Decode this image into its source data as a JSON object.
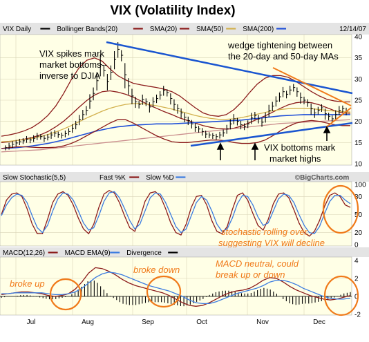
{
  "title": "VIX  (Volatility Index)",
  "colors": {
    "panel_bg": "#FFFFE6",
    "header_bg": "#E4E4E4",
    "price": "#000000",
    "bollinger": "#8B1A1A",
    "sma20": "#8B1A1A",
    "sma50": "#D2B04C",
    "sma200": "#1F4FD8",
    "annotation_line_blue": "#1A55D0",
    "annotation_orange": "#F07A1A",
    "fast_k": "#8B1A1A",
    "slow_d": "#3A7BE0",
    "macd": "#8B1A1A",
    "macd_ema": "#3A7BE0",
    "divergence": "#000000"
  },
  "chart_data": [
    {
      "type": "line",
      "panel": "price",
      "legend": {
        "items": [
          "VIX Daily",
          "Bollinger Bands(20)",
          "SMA(20)",
          "SMA(50)",
          "SMA(200)"
        ],
        "date": "12/14/07"
      },
      "ylim": [
        10,
        40
      ],
      "yticks": [
        "10",
        "15",
        "20",
        "25",
        "30",
        "35",
        "40"
      ],
      "xticks": [
        "Jul",
        "Aug",
        "Sep",
        "Oct",
        "Nov",
        "Dec"
      ],
      "watermark": "©BigCharts.com",
      "series": [
        {
          "name": "VIX Daily",
          "style": "ohlc",
          "values": [
            13.8,
            14.2,
            14.6,
            14.9,
            15.2,
            15.4,
            15.8,
            15.6,
            16.0,
            16.5,
            16.4,
            16.0,
            16.3,
            16.8,
            17.2,
            16.9,
            16.7,
            17.1,
            17.6,
            18.4,
            19.2,
            20.4,
            21.6,
            22.6,
            24.8,
            26.6,
            29.6,
            33.4,
            32.0,
            29.4,
            31.6,
            34.6,
            37.0,
            35.6,
            31.0,
            28.4,
            26.0,
            24.6,
            24.0,
            25.2,
            24.6,
            23.4,
            24.6,
            25.4,
            26.2,
            27.3,
            26.8,
            25.4,
            24.0,
            23.0,
            22.0,
            21.0,
            20.2,
            19.4,
            18.6,
            18.2,
            17.6,
            17.0,
            16.8,
            16.6,
            16.4,
            16.8,
            17.3,
            18.2,
            19.4,
            20.6,
            20.0,
            19.2,
            18.8,
            19.4,
            20.8,
            21.4,
            20.6,
            19.8,
            21.0,
            22.6,
            23.6,
            24.8,
            25.8,
            27.0,
            26.4,
            27.4,
            28.0,
            27.0,
            25.6,
            25.0,
            24.4,
            23.0,
            22.0,
            22.6,
            23.2,
            21.8,
            21.2,
            20.6,
            21.6,
            22.6,
            23.0,
            22.4
          ]
        },
        {
          "name": "SMA(20)",
          "values": [
            15.0,
            15.2,
            15.5,
            15.8,
            16.2,
            16.8,
            17.6,
            18.7,
            20.0,
            21.6,
            23.3,
            24.9,
            26.2,
            27.0,
            27.2,
            26.9,
            26.4,
            25.7,
            24.8,
            23.9,
            23.1,
            22.3,
            21.6,
            20.8,
            20.2,
            19.6,
            19.0,
            18.6,
            18.3,
            18.2,
            18.4,
            18.9,
            19.7,
            20.5,
            21.3,
            22.2,
            23.1,
            23.9,
            24.4,
            24.6,
            24.4,
            23.9,
            23.2,
            22.5,
            22.0,
            21.9
          ]
        },
        {
          "name": "SMA(50)",
          "values": [
            15.2,
            15.3,
            15.5,
            15.7,
            16.0,
            16.4,
            16.9,
            17.5,
            18.2,
            19.0,
            19.9,
            20.8,
            21.6,
            22.4,
            23.1,
            23.6,
            24.0,
            24.2,
            24.2,
            24.0,
            23.7,
            23.3,
            22.9,
            22.4,
            21.9,
            21.4,
            21.0,
            20.7,
            20.5,
            20.5,
            20.6,
            20.9,
            21.3,
            21.7,
            22.1,
            22.5,
            22.8,
            23.0,
            23.1,
            23.1,
            23.0,
            22.8,
            22.6,
            22.4,
            22.3,
            22.2
          ]
        },
        {
          "name": "SMA(200)",
          "values": [
            13.6,
            13.7,
            13.8,
            14.0,
            14.2,
            14.5,
            14.8,
            15.2,
            15.6,
            16.1,
            16.6,
            17.1,
            17.6,
            18.0,
            18.4,
            18.7,
            18.9,
            19.1,
            19.2,
            19.3,
            19.4,
            19.4,
            19.4,
            19.5,
            19.6,
            19.7,
            19.8,
            19.9,
            20.0,
            20.1,
            20.2,
            20.3,
            20.5,
            20.7,
            20.9,
            21.1,
            21.3,
            21.4,
            21.5,
            21.6,
            21.6,
            21.6,
            21.6,
            21.6,
            21.6,
            21.6
          ]
        },
        {
          "name": "SMA (long, lower)",
          "values": [
            12.8,
            12.9,
            13.0,
            13.1,
            13.2,
            13.3,
            13.5,
            13.7,
            13.9,
            14.1,
            14.3,
            14.5,
            14.7,
            14.9,
            15.1,
            15.3,
            15.5,
            15.7,
            15.9,
            16.1,
            16.3,
            16.5,
            16.7,
            16.9,
            17.1,
            17.3,
            17.5,
            17.7,
            17.9,
            18.1,
            18.3,
            18.5,
            18.7,
            18.9,
            19.1,
            19.3,
            19.5,
            19.6,
            19.7,
            19.8,
            19.9,
            20.0,
            20.1,
            20.2,
            20.3,
            20.4
          ]
        },
        {
          "name": "Bollinger upper",
          "values": [
            16.5,
            16.8,
            17.2,
            17.8,
            18.6,
            19.8,
            21.4,
            23.6,
            26.5,
            29.8,
            32.6,
            34.4,
            35.0,
            34.2,
            32.4,
            30.8,
            29.8,
            29.0,
            28.6,
            28.3,
            28.0,
            27.6,
            27.0,
            26.0,
            24.6,
            23.2,
            22.0,
            21.4,
            21.2,
            21.6,
            22.8,
            24.6,
            26.8,
            28.8,
            30.2,
            30.8,
            30.8,
            30.4,
            29.4,
            28.2,
            27.0,
            26.0,
            25.2,
            24.8,
            24.6,
            24.6
          ]
        },
        {
          "name": "Bollinger lower",
          "values": [
            13.6,
            13.8,
            14.0,
            14.0,
            13.9,
            13.8,
            13.8,
            13.9,
            14.2,
            14.8,
            15.6,
            16.6,
            17.6,
            18.6,
            19.6,
            20.4,
            20.4,
            19.6,
            18.6,
            17.6,
            16.6,
            15.8,
            15.2,
            15.0,
            15.0,
            15.2,
            15.4,
            15.6,
            15.6,
            15.4,
            15.0,
            14.8,
            14.8,
            15.0,
            15.6,
            16.6,
            17.8,
            18.8,
            19.6,
            20.0,
            20.2,
            20.0,
            19.6,
            19.2,
            19.0,
            19.0
          ]
        }
      ],
      "annotations": [
        "VIX spikes mark",
        "market bottoms--",
        "inverse to DJIA",
        "wedge tightening between",
        "the 20-day and 50-day MAs",
        "VIX bottoms mark",
        "market highs"
      ]
    },
    {
      "type": "line",
      "panel": "stochastic",
      "legend": {
        "items": [
          "Slow Stochastic(5,5)",
          "Fast %K",
          "Slow %D"
        ]
      },
      "ylim": [
        0,
        100
      ],
      "yticks": [
        "0",
        "20",
        "50",
        "80",
        "100"
      ],
      "series": [
        {
          "name": "Fast %K",
          "values": [
            50,
            74,
            84,
            86,
            80,
            60,
            34,
            18,
            18,
            42,
            70,
            84,
            88,
            82,
            66,
            44,
            26,
            18,
            34,
            62,
            84,
            90,
            86,
            70,
            48,
            28,
            22,
            44,
            72,
            86,
            88,
            80,
            60,
            36,
            20,
            16,
            34,
            62,
            80,
            82,
            66,
            40,
            22,
            18,
            30,
            58,
            82,
            86,
            74,
            52,
            32,
            24,
            42,
            68,
            84,
            86,
            78,
            58,
            36,
            20,
            14,
            22,
            40,
            64,
            82,
            86,
            80,
            66,
            62
          ]
        },
        {
          "name": "Slow %D",
          "values": [
            48,
            66,
            78,
            84,
            82,
            70,
            48,
            28,
            20,
            32,
            56,
            76,
            86,
            84,
            74,
            56,
            36,
            24,
            28,
            48,
            72,
            86,
            88,
            78,
            60,
            40,
            26,
            34,
            56,
            78,
            86,
            84,
            70,
            50,
            30,
            20,
            26,
            48,
            70,
            80,
            74,
            56,
            34,
            22,
            26,
            44,
            68,
            82,
            80,
            66,
            46,
            32,
            36,
            56,
            76,
            84,
            82,
            70,
            50,
            32,
            20,
            18,
            30,
            52,
            72,
            82,
            82,
            74,
            68
          ]
        }
      ],
      "annotations": [
        "stochastic rolling over,",
        "suggesting VIX will decline"
      ]
    },
    {
      "type": "line",
      "panel": "macd",
      "legend": {
        "items": [
          "MACD(12,26)",
          "MACD EMA(9)",
          "Divergence"
        ]
      },
      "ylim": [
        -2,
        4
      ],
      "yticks": [
        "-2",
        "0",
        "2",
        "4"
      ],
      "series": [
        {
          "name": "MACD(12,26)",
          "values": [
            0.2,
            0.3,
            0.4,
            0.5,
            0.5,
            0.4,
            0.3,
            0.1,
            0.0,
            0.1,
            0.3,
            0.8,
            1.6,
            2.6,
            3.2,
            3.1,
            2.8,
            2.4,
            1.9,
            1.5,
            1.2,
            1.0,
            0.8,
            0.6,
            0.4,
            0.1,
            -0.3,
            -0.7,
            -1.0,
            -1.1,
            -1.0,
            -0.7,
            -0.3,
            0.1,
            0.4,
            0.6,
            0.7,
            0.9,
            1.3,
            1.8,
            2.1,
            2.0,
            1.6,
            1.1,
            0.7,
            0.4,
            0.1,
            -0.1,
            -0.3,
            -0.4,
            -0.3,
            -0.1,
            0.1
          ]
        },
        {
          "name": "MACD EMA(9)",
          "values": [
            0.3,
            0.3,
            0.4,
            0.4,
            0.4,
            0.4,
            0.4,
            0.3,
            0.2,
            0.2,
            0.3,
            0.5,
            0.9,
            1.5,
            2.1,
            2.5,
            2.7,
            2.6,
            2.4,
            2.1,
            1.8,
            1.5,
            1.2,
            1.0,
            0.8,
            0.6,
            0.3,
            0.0,
            -0.4,
            -0.7,
            -0.8,
            -0.8,
            -0.6,
            -0.3,
            0.0,
            0.3,
            0.5,
            0.7,
            0.9,
            1.2,
            1.6,
            1.8,
            1.8,
            1.6,
            1.3,
            0.9,
            0.6,
            0.3,
            0.0,
            -0.2,
            -0.3,
            -0.3,
            -0.2
          ]
        }
      ],
      "annotations": [
        "broke up",
        "broke down",
        "MACD neutral, could",
        "break up or down"
      ]
    }
  ]
}
